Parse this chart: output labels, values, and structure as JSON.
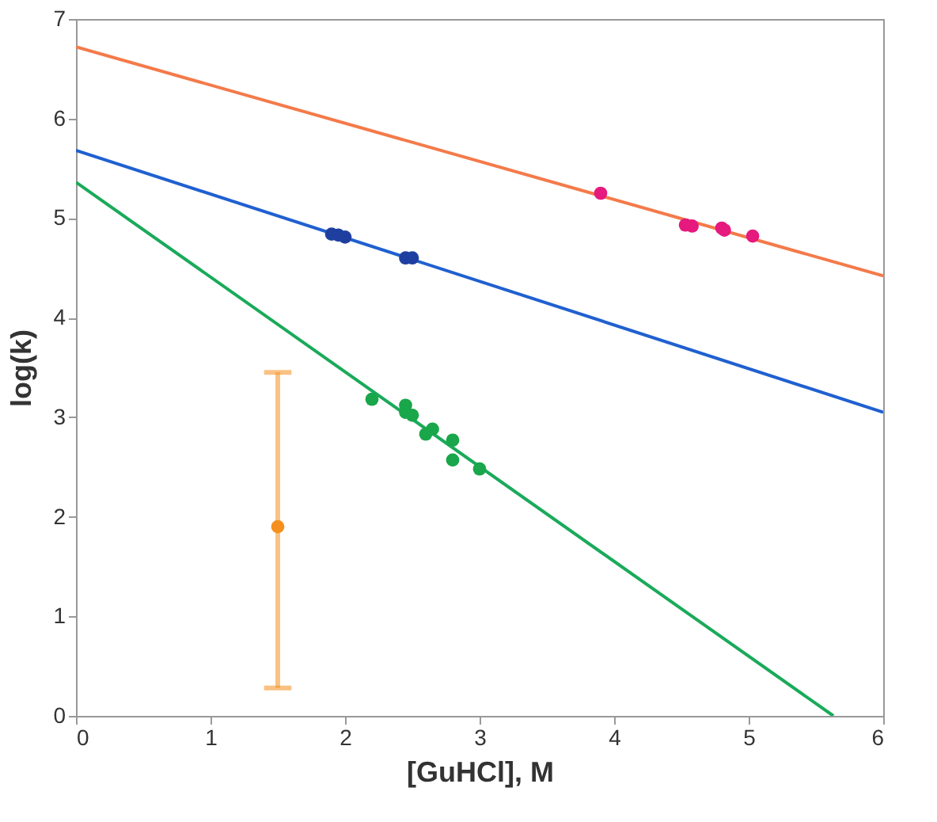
{
  "chart_data": {
    "type": "scatter",
    "xlabel": "[GuHCl], M",
    "ylabel": "log(k)",
    "xlim": [
      0,
      6
    ],
    "ylim": [
      0,
      7
    ],
    "xticks": [
      0,
      1,
      2,
      3,
      4,
      5,
      6
    ],
    "yticks": [
      0,
      1,
      2,
      3,
      4,
      5,
      6,
      7
    ],
    "grid": false,
    "series": [
      {
        "type": "line",
        "color": "#f47a4a",
        "x": [
          0,
          6
        ],
        "values": [
          6.72,
          4.42
        ]
      },
      {
        "type": "line",
        "color": "#2060d0",
        "x": [
          0,
          6
        ],
        "values": [
          5.68,
          3.05
        ]
      },
      {
        "type": "line",
        "color": "#1aaa5a",
        "x": [
          0,
          5.63
        ],
        "values": [
          5.36,
          0
        ]
      },
      {
        "marker": "circle",
        "color": "#e6197e",
        "x": [
          3.9,
          4.53,
          4.58,
          4.8,
          4.82,
          5.03
        ],
        "values": [
          5.25,
          4.93,
          4.92,
          4.9,
          4.88,
          4.82
        ]
      },
      {
        "marker": "circle",
        "color": "#1f3fa0",
        "x": [
          1.9,
          1.95,
          2.0,
          2.45,
          2.5
        ],
        "values": [
          4.84,
          4.83,
          4.81,
          4.6,
          4.6
        ]
      },
      {
        "marker": "circle",
        "color": "#1aa64a",
        "x": [
          2.2,
          2.45,
          2.45,
          2.5,
          2.6,
          2.65,
          2.8,
          2.8,
          3.0
        ],
        "values": [
          3.18,
          3.12,
          3.05,
          3.02,
          2.83,
          2.88,
          2.77,
          2.57,
          2.48
        ]
      },
      {
        "marker": "circle",
        "color": "#f5901e",
        "x": [
          1.5
        ],
        "values": [
          1.9
        ],
        "errors": [
          [
            0.28,
            3.45
          ]
        ]
      }
    ]
  }
}
